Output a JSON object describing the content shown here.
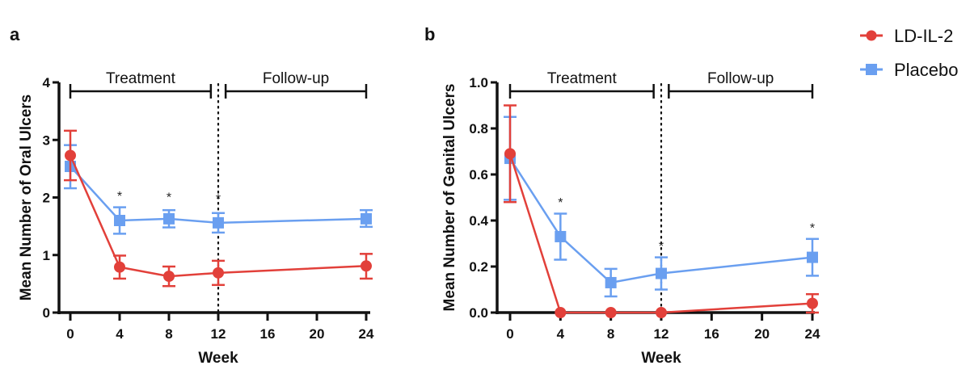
{
  "legend": {
    "position": "top-right",
    "entries": [
      {
        "name": "LD-IL-2",
        "marker": "circle",
        "color": "#e2403a"
      },
      {
        "name": "Placebo",
        "marker": "square",
        "color": "#6a9ff0"
      }
    ]
  },
  "chart_data": [
    {
      "type": "line",
      "panel_label": "a",
      "title": "",
      "xlabel": "Week",
      "ylabel": "Mean Number of Oral Ulcers",
      "xlim": [
        -1,
        24
      ],
      "ylim": [
        0,
        4
      ],
      "x_ticks": [
        0,
        4,
        8,
        12,
        16,
        20,
        24
      ],
      "y_ticks": [
        0,
        1,
        2,
        3,
        4
      ],
      "y_tick_labels": [
        "0",
        "1",
        "2",
        "3",
        "4"
      ],
      "grid": false,
      "vertical_reference_line": {
        "x": 12,
        "style": "dotted"
      },
      "phases": [
        {
          "label": "Treatment",
          "from": 0,
          "to": 11.4
        },
        {
          "label": "Follow-up",
          "from": 12.6,
          "to": 24
        }
      ],
      "x": [
        0,
        4,
        8,
        12,
        24
      ],
      "series": [
        {
          "name": "LD-IL-2",
          "values": [
            2.73,
            0.79,
            0.63,
            0.69,
            0.81
          ],
          "err_low": [
            2.3,
            0.59,
            0.46,
            0.48,
            0.59
          ],
          "err_high": [
            3.16,
            0.99,
            0.8,
            0.9,
            1.02
          ]
        },
        {
          "name": "Placebo",
          "values": [
            2.54,
            1.6,
            1.63,
            1.56,
            1.63
          ],
          "err_low": [
            2.16,
            1.37,
            1.48,
            1.39,
            1.49
          ],
          "err_high": [
            2.91,
            1.83,
            1.78,
            1.73,
            1.78
          ]
        }
      ],
      "significance_marks": [
        {
          "x": 4,
          "label": "*",
          "y": 1.95
        },
        {
          "x": 8,
          "label": "*",
          "y": 1.93
        },
        {
          "x": 12,
          "label": "*",
          "y": 1.9
        }
      ]
    },
    {
      "type": "line",
      "panel_label": "b",
      "title": "",
      "xlabel": "Week",
      "ylabel": "Mean Number of Genital Ulcers",
      "xlim": [
        -1,
        24
      ],
      "ylim": [
        0,
        1.0
      ],
      "x_ticks": [
        0,
        4,
        8,
        12,
        16,
        20,
        24
      ],
      "y_ticks": [
        0,
        0.2,
        0.4,
        0.6,
        0.8,
        1.0
      ],
      "y_tick_labels": [
        "0.0",
        "0.2",
        "0.4",
        "0.6",
        "0.8",
        "1.0"
      ],
      "grid": false,
      "vertical_reference_line": {
        "x": 12,
        "style": "dotted"
      },
      "phases": [
        {
          "label": "Treatment",
          "from": 0,
          "to": 11.4
        },
        {
          "label": "Follow-up",
          "from": 12.6,
          "to": 24
        }
      ],
      "x": [
        0,
        4,
        8,
        12,
        24
      ],
      "series": [
        {
          "name": "LD-IL-2",
          "values": [
            0.69,
            0.0,
            0.0,
            0.0,
            0.04
          ],
          "err_low": [
            0.48,
            0.0,
            0.0,
            0.0,
            0.0
          ],
          "err_high": [
            0.9,
            0.0,
            0.0,
            0.0,
            0.08
          ]
        },
        {
          "name": "Placebo",
          "values": [
            0.67,
            0.33,
            0.13,
            0.17,
            0.24
          ],
          "err_low": [
            0.49,
            0.23,
            0.07,
            0.1,
            0.16
          ],
          "err_high": [
            0.85,
            0.43,
            0.19,
            0.24,
            0.32
          ]
        }
      ],
      "significance_marks": [
        {
          "x": 4,
          "label": "*",
          "y": 0.46
        },
        {
          "x": 12,
          "label": "*",
          "y": 0.27
        },
        {
          "x": 24,
          "label": "*",
          "y": 0.35
        }
      ]
    }
  ]
}
